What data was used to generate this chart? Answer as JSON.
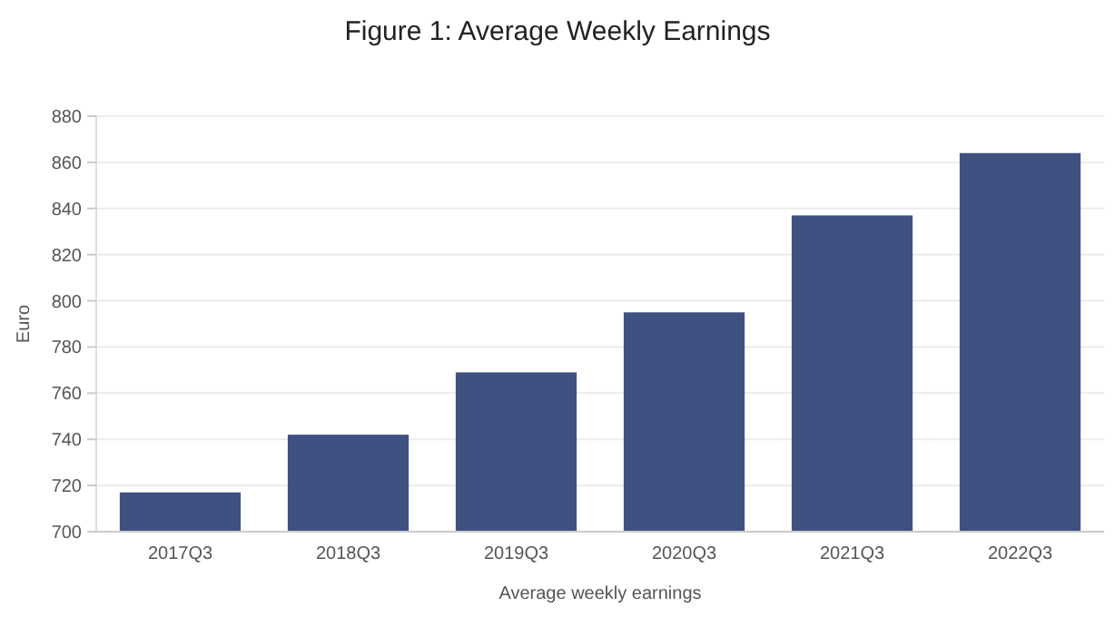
{
  "chart_data": {
    "type": "bar",
    "title": "Figure 1: Average Weekly Earnings",
    "xlabel": "Average weekly earnings",
    "ylabel": "Euro",
    "categories": [
      "2017Q3",
      "2018Q3",
      "2019Q3",
      "2020Q3",
      "2021Q3",
      "2022Q3"
    ],
    "values": [
      717,
      742,
      769,
      795,
      837,
      864
    ],
    "color": "#3f5180",
    "ylim": [
      700,
      880
    ],
    "yticks": [
      700,
      720,
      740,
      760,
      780,
      800,
      820,
      840,
      860,
      880
    ],
    "grid": "y"
  }
}
